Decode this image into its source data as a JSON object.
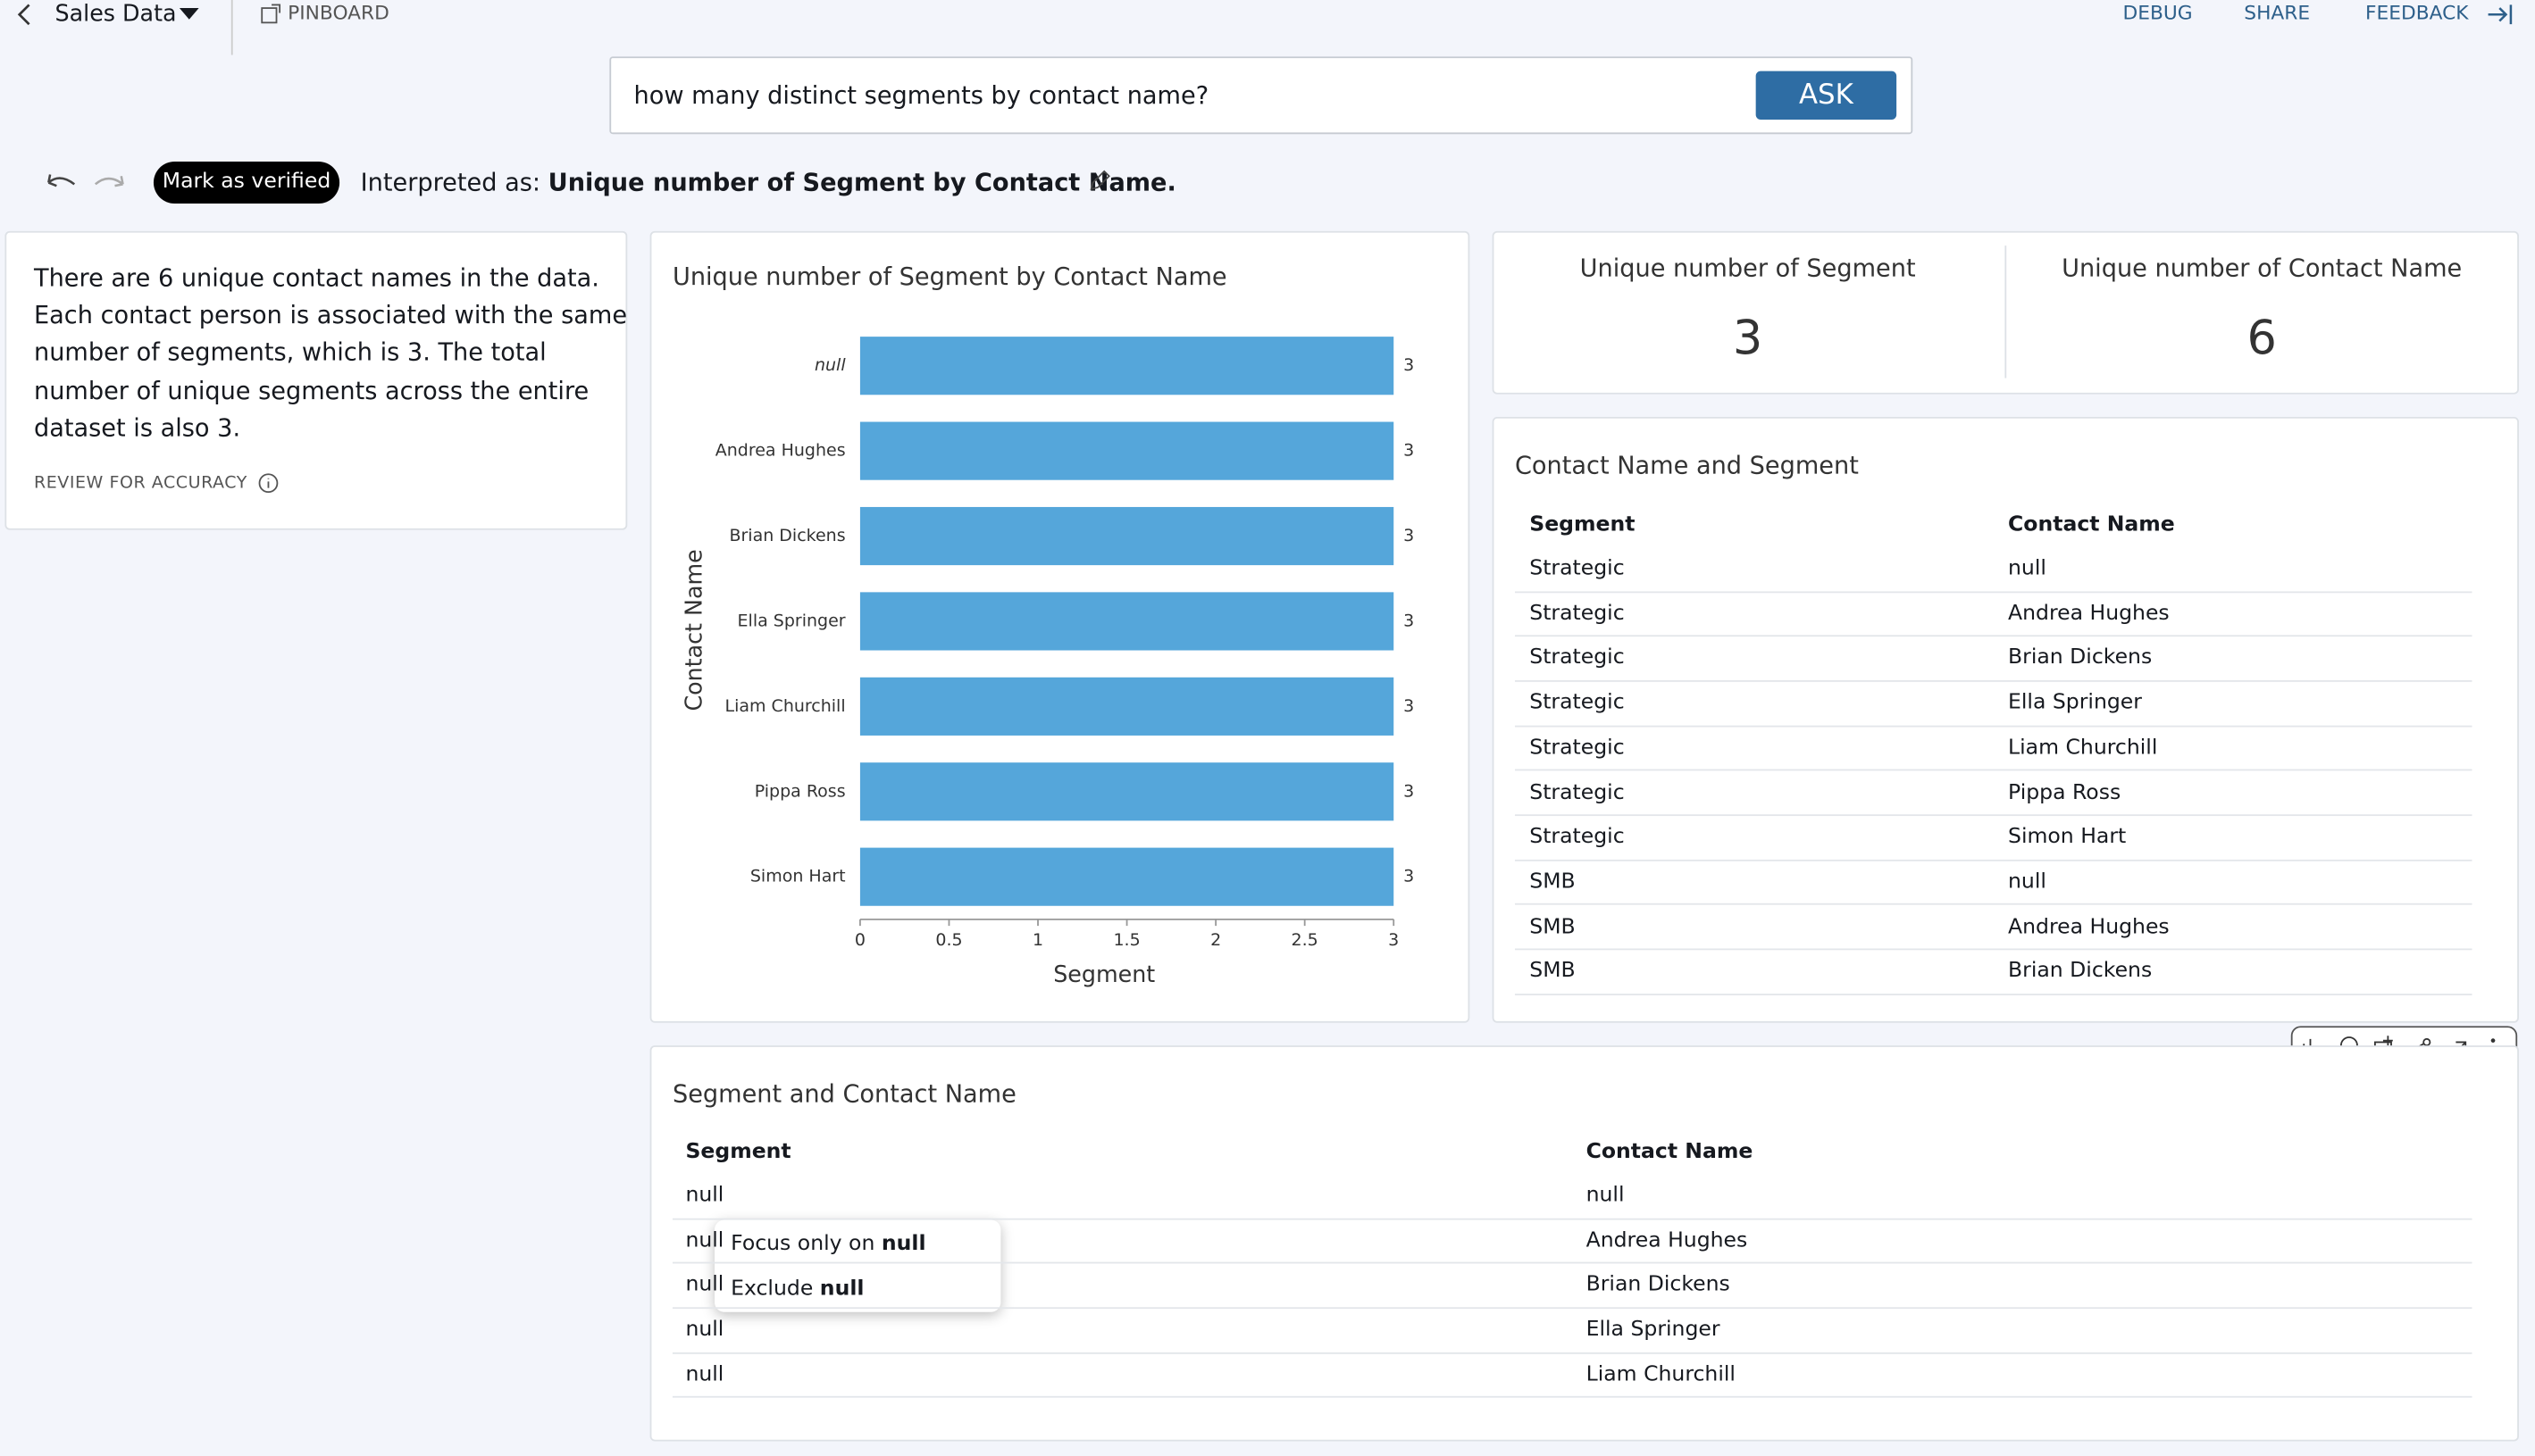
{
  "header": {
    "title": "Sales Data",
    "pinboard": "PINBOARD",
    "actions": [
      "DEBUG",
      "SHARE",
      "FEEDBACK"
    ]
  },
  "search": {
    "query": "how many distinct segments by contact name?",
    "button": "ASK"
  },
  "interpretation": {
    "verify": "Mark as verified",
    "label": "Interpreted as:",
    "text": "Unique number of Segment by Contact Name."
  },
  "summary": {
    "lines": [
      "There are 6 unique contact names in the data.",
      "Each contact person is associated with the same",
      "number of segments, which is 3. The total",
      "number of unique segments across the entire",
      "dataset is also 3."
    ],
    "review": "REVIEW FOR ACCURACY"
  },
  "chart_data": {
    "type": "bar",
    "orientation": "horizontal",
    "title": "Unique number of Segment by Contact Name",
    "x_label": "Segment",
    "y_label": "Contact Name",
    "categories": [
      "null",
      "Andrea Hughes",
      "Brian Dickens",
      "Ella Springer",
      "Liam Churchill",
      "Pippa Ross",
      "Simon Hart"
    ],
    "values": [
      3,
      3,
      3,
      3,
      3,
      3,
      3
    ],
    "color": "#55a6da",
    "xlim": [
      0,
      3
    ],
    "xticks": [
      0,
      0.5,
      1,
      1.5,
      2,
      2.5,
      3
    ]
  },
  "kpis": [
    {
      "label": "Unique number of Segment",
      "value": 3
    },
    {
      "label": "Unique number of Contact Name",
      "value": 6
    }
  ],
  "table": {
    "title": "Contact Name and Segment",
    "columns": [
      "Segment",
      "Contact Name"
    ],
    "rows": [
      [
        "Strategic",
        "null"
      ],
      [
        "Strategic",
        "Andrea Hughes"
      ],
      [
        "Strategic",
        "Brian Dickens"
      ],
      [
        "Strategic",
        "Ella Springer"
      ],
      [
        "Strategic",
        "Liam Churchill"
      ],
      [
        "Strategic",
        "Pippa Ross"
      ],
      [
        "Strategic",
        "Simon Hart"
      ],
      [
        "SMB",
        "null"
      ],
      [
        "SMB",
        "Andrea Hughes"
      ],
      [
        "SMB",
        "Brian Dickens"
      ]
    ]
  },
  "table2": {
    "title": "Segment and Contact Name",
    "columns": [
      "Segment",
      "Contact Name"
    ],
    "rows": [
      [
        "null",
        "null"
      ],
      [
        "null",
        "Andrea Hughes"
      ],
      [
        "null",
        "Brian Dickens"
      ],
      [
        "null",
        "Ella Springer"
      ],
      [
        "null",
        "Liam Churchill"
      ]
    ]
  },
  "popup": {
    "items": [
      {
        "text": "Focus only on",
        "target": "null"
      },
      {
        "text": "Exclude",
        "target": "null"
      }
    ]
  }
}
